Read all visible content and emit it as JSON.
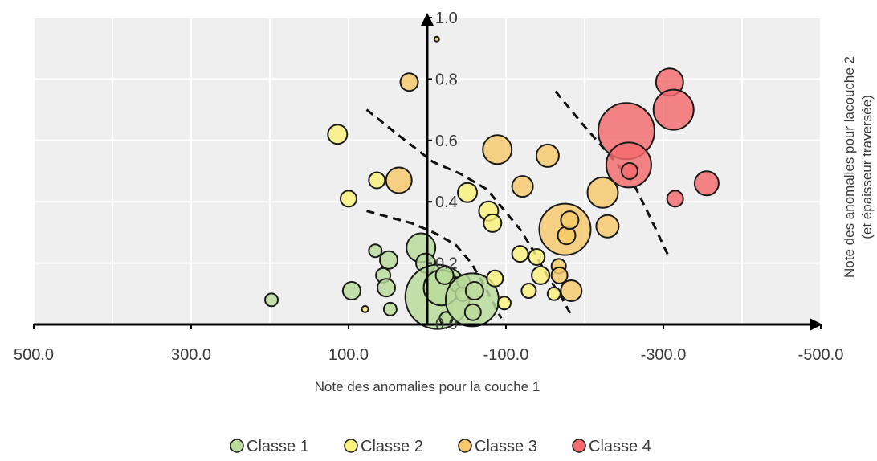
{
  "chart_data": {
    "type": "scatter",
    "bubble": true,
    "xlabel": "Note des anomalies pour la couche 1",
    "ylabel_lines": [
      "Note des anomalies pour lacouche 2",
      "(et épaisseur traversée)"
    ],
    "x_reversed": true,
    "xlim": [
      500,
      -500
    ],
    "ylim": [
      0,
      1
    ],
    "x_ticks": [
      500,
      300,
      100,
      -100,
      -300,
      -500
    ],
    "x_tick_labels": [
      "500.0",
      "300.0",
      "100.0",
      "-100.0",
      "-300.0",
      "-500.0"
    ],
    "y_ticks": [
      0.2,
      0.4,
      0.6,
      0.8,
      1.0
    ],
    "y_tick_labels": [
      "0.2",
      "0.4",
      "0.6",
      "0.8",
      "1.0"
    ],
    "y_axis_bottom_label": "0.0",
    "grid": true,
    "legend_position": "bottom",
    "colors": {
      "Classe 1": "#b9dc9a",
      "Classe 2": "#fbf27a",
      "Classe 3": "#f7c96a",
      "Classe 4": "#f46a6e",
      "plot_background": "#efefef",
      "grid": "#ffffff"
    },
    "series": [
      {
        "name": "Classe 1",
        "points": [
          {
            "x": 198,
            "y": 0.08,
            "size": 8
          },
          {
            "x": 96,
            "y": 0.11,
            "size": 11
          },
          {
            "x": 66,
            "y": 0.24,
            "size": 8
          },
          {
            "x": 56,
            "y": 0.16,
            "size": 9
          },
          {
            "x": 52,
            "y": 0.12,
            "size": 11
          },
          {
            "x": 49,
            "y": 0.21,
            "size": 11
          },
          {
            "x": 47,
            "y": 0.05,
            "size": 8
          },
          {
            "x": 8,
            "y": 0.25,
            "size": 18
          },
          {
            "x": 2,
            "y": 0.2,
            "size": 12
          },
          {
            "x": -13,
            "y": 0.09,
            "size": 40
          },
          {
            "x": -18,
            "y": 0.12,
            "size": 22
          },
          {
            "x": -22,
            "y": 0.16,
            "size": 11
          },
          {
            "x": -24,
            "y": 0.02,
            "size": 8
          },
          {
            "x": -38,
            "y": 0.13,
            "size": 9
          },
          {
            "x": -45,
            "y": 0.1,
            "size": 9
          },
          {
            "x": -46,
            "y": 0.14,
            "size": 8
          },
          {
            "x": -57,
            "y": 0.08,
            "size": 33
          },
          {
            "x": -58,
            "y": 0.04,
            "size": 10
          },
          {
            "x": -60,
            "y": 0.11,
            "size": 11
          }
        ]
      },
      {
        "name": "Classe 2",
        "points": [
          {
            "x": 114,
            "y": 0.62,
            "size": 12
          },
          {
            "x": 100,
            "y": 0.41,
            "size": 10
          },
          {
            "x": 79,
            "y": 0.05,
            "size": 4
          },
          {
            "x": 64,
            "y": 0.47,
            "size": 10
          },
          {
            "x": -51,
            "y": 0.43,
            "size": 12
          },
          {
            "x": -78,
            "y": 0.37,
            "size": 12
          },
          {
            "x": -83,
            "y": 0.33,
            "size": 11
          },
          {
            "x": -86,
            "y": 0.15,
            "size": 10
          },
          {
            "x": -98,
            "y": 0.07,
            "size": 8
          },
          {
            "x": -118,
            "y": 0.23,
            "size": 10
          },
          {
            "x": -129,
            "y": 0.11,
            "size": 9
          },
          {
            "x": -139,
            "y": 0.22,
            "size": 10
          },
          {
            "x": -144,
            "y": 0.16,
            "size": 11
          },
          {
            "x": -161,
            "y": 0.1,
            "size": 8
          }
        ]
      },
      {
        "name": "Classe 3",
        "points": [
          {
            "x": 36,
            "y": 0.47,
            "size": 16
          },
          {
            "x": 23,
            "y": 0.79,
            "size": 11
          },
          {
            "x": -12,
            "y": 0.93,
            "size": 3
          },
          {
            "x": -89,
            "y": 0.57,
            "size": 18
          },
          {
            "x": -121,
            "y": 0.45,
            "size": 13
          },
          {
            "x": -153,
            "y": 0.55,
            "size": 14
          },
          {
            "x": -167,
            "y": 0.19,
            "size": 9
          },
          {
            "x": -168,
            "y": 0.16,
            "size": 10
          },
          {
            "x": -175,
            "y": 0.31,
            "size": 32
          },
          {
            "x": -177,
            "y": 0.29,
            "size": 11
          },
          {
            "x": -181,
            "y": 0.34,
            "size": 11
          },
          {
            "x": -183,
            "y": 0.11,
            "size": 13
          },
          {
            "x": -223,
            "y": 0.43,
            "size": 19
          },
          {
            "x": -229,
            "y": 0.32,
            "size": 14
          }
        ]
      },
      {
        "name": "Classe 4",
        "points": [
          {
            "x": -253,
            "y": 0.63,
            "size": 35
          },
          {
            "x": -256,
            "y": 0.52,
            "size": 28
          },
          {
            "x": -257,
            "y": 0.5,
            "size": 10
          },
          {
            "x": -308,
            "y": 0.79,
            "size": 17
          },
          {
            "x": -313,
            "y": 0.7,
            "size": 25
          },
          {
            "x": -315,
            "y": 0.41,
            "size": 10
          },
          {
            "x": -355,
            "y": 0.46,
            "size": 15
          }
        ]
      }
    ],
    "boundaries": [
      {
        "name": "boundary-1-2",
        "points": [
          [
            77,
            0.37
          ],
          [
            20,
            0.33
          ],
          [
            -8,
            0.3
          ],
          [
            -36,
            0.26
          ],
          [
            -56,
            0.2
          ],
          [
            -74,
            0.12
          ],
          [
            -94,
            0.02
          ]
        ]
      },
      {
        "name": "boundary-2-3",
        "points": [
          [
            77,
            0.7
          ],
          [
            38,
            0.62
          ],
          [
            -7,
            0.53
          ],
          [
            -43,
            0.49
          ],
          [
            -76,
            0.44
          ],
          [
            -92,
            0.39
          ],
          [
            -118,
            0.31
          ],
          [
            -135,
            0.24
          ],
          [
            -152,
            0.16
          ],
          [
            -168,
            0.1
          ],
          [
            -183,
            0.03
          ]
        ]
      },
      {
        "name": "boundary-3-4",
        "points": [
          [
            -163,
            0.76
          ],
          [
            -195,
            0.66
          ],
          [
            -229,
            0.56
          ],
          [
            -262,
            0.46
          ],
          [
            -285,
            0.34
          ],
          [
            -307,
            0.22
          ]
        ]
      }
    ]
  }
}
